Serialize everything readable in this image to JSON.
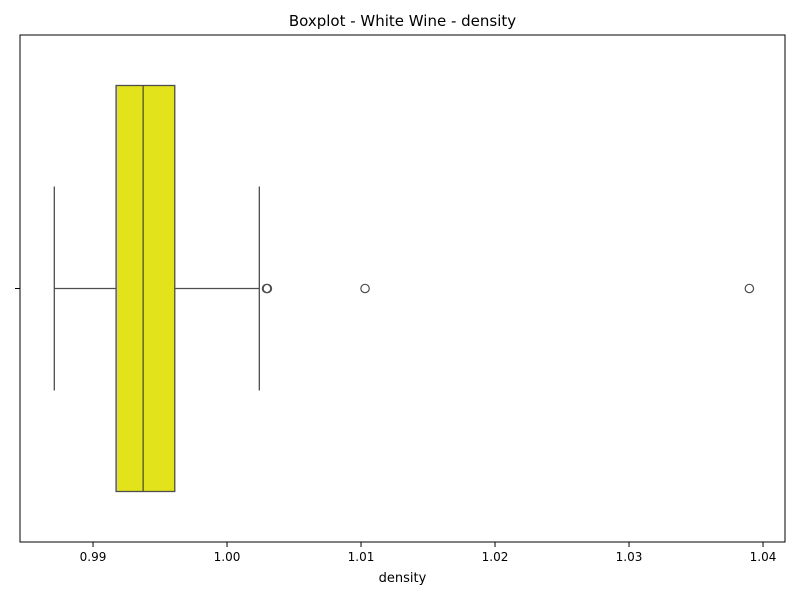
{
  "chart_data": {
    "type": "boxplot",
    "title": "Boxplot - White Wine - density",
    "xlabel": "density",
    "ylabel": "",
    "orientation": "horizontal",
    "xlim": [
      0.98455,
      1.04164
    ],
    "xticks": [
      0.99,
      1.0,
      1.01,
      1.02,
      1.03,
      1.04
    ],
    "xtick_labels": [
      "0.99",
      "1.00",
      "1.01",
      "1.02",
      "1.03",
      "1.04"
    ],
    "ytick_labels": [
      ""
    ],
    "grid": false,
    "series": [
      {
        "whisker_low": 0.98711,
        "q1": 0.99172,
        "median": 0.99374,
        "q3": 0.9961,
        "whisker_high": 1.00241,
        "outliers": [
          1.00295,
          1.0103,
          1.03898
        ],
        "color": "#ffff00"
      }
    ]
  }
}
